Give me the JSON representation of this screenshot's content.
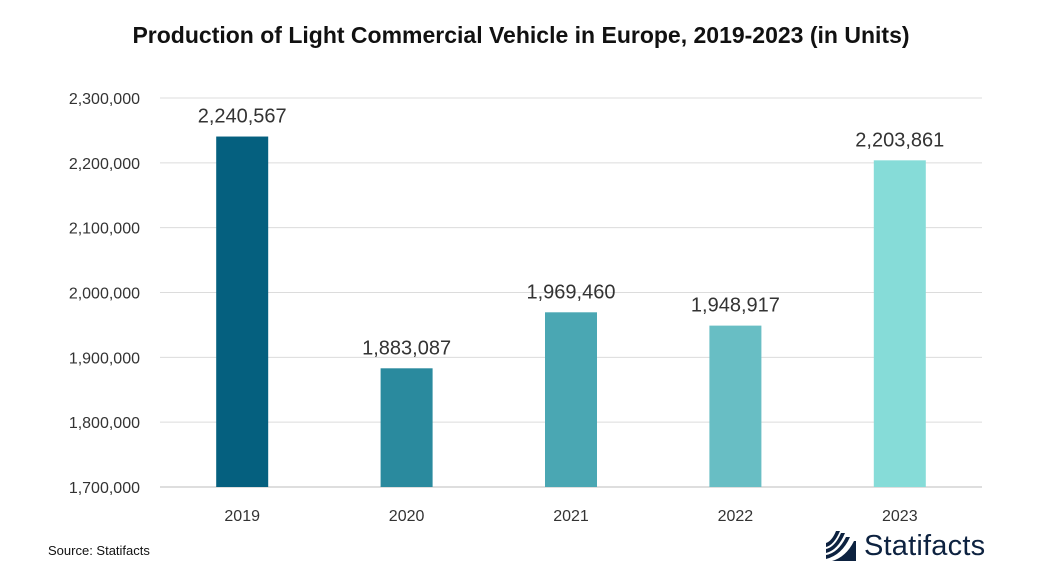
{
  "chart_data": {
    "type": "bar",
    "title": "Production of Light Commercial Vehicle in Europe, 2019-2023 (in Units)",
    "xlabel": "",
    "ylabel": "",
    "categories": [
      "2019",
      "2020",
      "2021",
      "2022",
      "2023"
    ],
    "values": [
      2240567,
      1883087,
      1969460,
      1948917,
      2203861
    ],
    "value_labels": [
      "2,240,567",
      "1,883,087",
      "1,969,460",
      "1,948,917",
      "2,203,861"
    ],
    "ylim": [
      1700000,
      2300000
    ],
    "yticks": [
      1700000,
      1800000,
      1900000,
      2000000,
      2100000,
      2200000,
      2300000
    ],
    "ytick_labels": [
      "1,700,000",
      "1,800,000",
      "1,900,000",
      "2,000,000",
      "2,100,000",
      "2,200,000",
      "2,300,000"
    ],
    "grid": true,
    "bar_colors": [
      "#05607f",
      "#2a8a9e",
      "#4aa7b3",
      "#68bec4",
      "#86dcd8"
    ]
  },
  "footer": {
    "source": "Source: Statifacts",
    "brand": "Statifacts"
  }
}
